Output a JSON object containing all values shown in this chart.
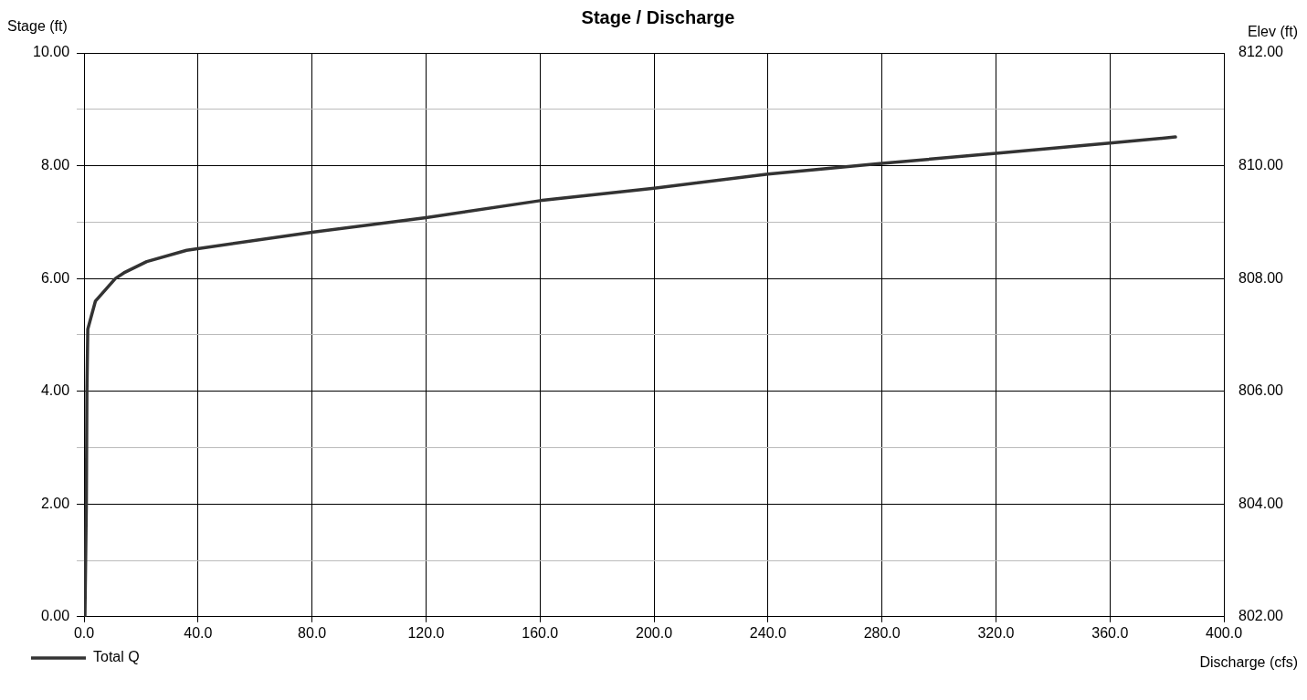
{
  "chart_data": {
    "type": "line",
    "title": "Stage / Discharge",
    "xlabel": "Discharge (cfs)",
    "ylabel": "Stage (ft)",
    "y2label": "Elev (ft)",
    "series": [
      {
        "name": "Total Q",
        "color": "#333333",
        "x": [
          0.3,
          0.8,
          1.0,
          1.3,
          4,
          11,
          14,
          22,
          36,
          80,
          120,
          160,
          200,
          240,
          280,
          320,
          360,
          383
        ],
        "values": [
          0,
          2,
          4,
          5.1,
          5.6,
          6,
          6.1,
          6.3,
          6.5,
          6.82,
          7.08,
          7.38,
          7.6,
          7.85,
          8.04,
          8.22,
          8.4,
          8.51
        ]
      }
    ],
    "xlim": [
      0,
      400
    ],
    "xticks": [
      {
        "value": 0,
        "label": "0.0"
      },
      {
        "value": 40,
        "label": "40.0"
      },
      {
        "value": 80,
        "label": "80.0"
      },
      {
        "value": 120,
        "label": "120.0"
      },
      {
        "value": 160,
        "label": "160.0"
      },
      {
        "value": 200,
        "label": "200.0"
      },
      {
        "value": 240,
        "label": "240.0"
      },
      {
        "value": 280,
        "label": "280.0"
      },
      {
        "value": 320,
        "label": "320.0"
      },
      {
        "value": 360,
        "label": "360.0"
      },
      {
        "value": 400,
        "label": "400.0"
      }
    ],
    "ylim": [
      0,
      10
    ],
    "yticks": [
      {
        "value": 0,
        "label": "0.00"
      },
      {
        "value": 1,
        "label": null
      },
      {
        "value": 2,
        "label": "2.00"
      },
      {
        "value": 3,
        "label": null
      },
      {
        "value": 4,
        "label": "4.00"
      },
      {
        "value": 5,
        "label": null
      },
      {
        "value": 6,
        "label": "6.00"
      },
      {
        "value": 7,
        "label": null
      },
      {
        "value": 8,
        "label": "8.00"
      },
      {
        "value": 9,
        "label": null
      },
      {
        "value": 10,
        "label": "10.00"
      }
    ],
    "y2lim": [
      802,
      812
    ],
    "y2ticks": [
      {
        "value": 802,
        "label": "802.00"
      },
      {
        "value": 804,
        "label": "804.00"
      },
      {
        "value": 806,
        "label": "806.00"
      },
      {
        "value": 808,
        "label": "808.00"
      },
      {
        "value": 810,
        "label": "810.00"
      },
      {
        "value": 812,
        "label": "812.00"
      }
    ],
    "grid": true,
    "legend": "bottom left",
    "marker": "none",
    "line_style": "solid"
  }
}
